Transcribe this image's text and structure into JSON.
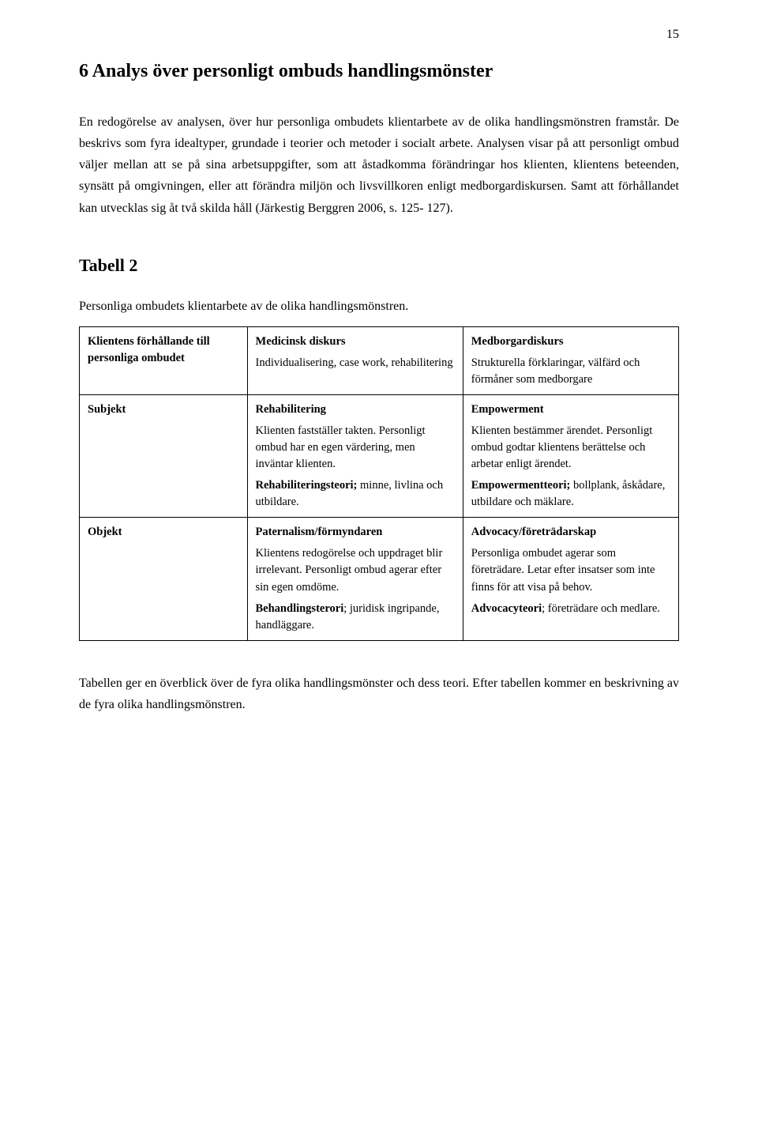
{
  "page_number": "15",
  "heading": "6   Analys över personligt ombuds handlingsmönster",
  "intro_paragraph": "En redogörelse av analysen, över hur personliga ombudets klientarbete av de olika handlingsmönstren framstår. De beskrivs som fyra idealtyper, grundade i teorier och metoder i socialt arbete. Analysen visar på att personligt ombud väljer mellan att se på sina arbetsuppgifter, som att åstadkomma förändringar hos klienten, klientens beteenden, synsätt på omgivningen, eller att förändra miljön och livsvillkoren enligt medborgardiskursen. Samt att förhållandet kan utvecklas sig åt två skilda håll (Järkestig Berggren 2006, s. 125- 127).",
  "table_heading": "Tabell 2",
  "table_caption": "Personliga ombudets klientarbete av de olika handlingsmönstren.",
  "table": {
    "row1": {
      "left": "Klientens förhållande till personliga ombudet",
      "mid_head": "Medicinsk diskurs",
      "mid_sub": "Individualisering, case work, rehabilitering",
      "right_head": "Medborgardiskurs",
      "right_sub": "Strukturella förklaringar, välfärd och förmåner som medborgare"
    },
    "row2": {
      "left": "Subjekt",
      "mid_head": "Rehabilitering",
      "mid_sub1": "Klienten fastställer takten. Personligt ombud har en egen värdering, men inväntar klienten.",
      "mid_bold": "Rehabiliteringsteori;",
      "mid_after": " minne, livlina och utbildare.",
      "right_head": "Empowerment",
      "right_sub1": "Klienten bestämmer ärendet. Personligt ombud godtar klientens berättelse och arbetar enligt ärendet.",
      "right_bold": "Empowermentteori;",
      "right_after": " bollplank, åskådare, utbildare och mäklare."
    },
    "row3": {
      "left": "Objekt",
      "mid_head": "Paternalism/förmyndaren",
      "mid_sub1": "Klientens redogörelse och uppdraget blir irrelevant. Personligt ombud agerar efter sin egen omdöme.",
      "mid_bold": "Behandlingsterori",
      "mid_after": "; juridisk ingripande, handläggare.",
      "right_head": "Advocacy/företrädarskap",
      "right_sub1": "Personliga ombudet agerar som företrädare. Letar efter insatser som inte finns för att visa på behov.",
      "right_bold": "Advocacyteori",
      "right_after": "; företrädare och medlare."
    }
  },
  "closing_paragraph": "Tabellen ger en överblick över de fyra olika handlingsmönster och dess teori. Efter tabellen kommer en beskrivning av de fyra olika handlingsmönstren."
}
